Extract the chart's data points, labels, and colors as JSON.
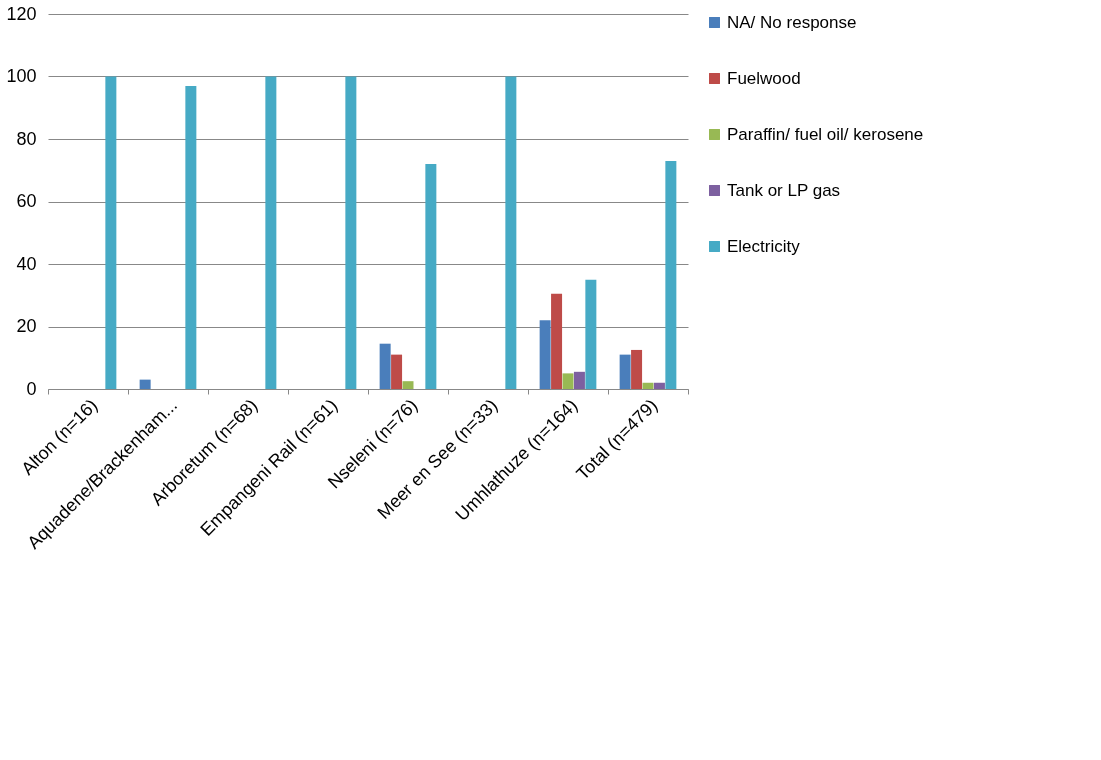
{
  "chart_data": {
    "type": "bar",
    "categories": [
      "Alton (n=16)",
      "Aquadene/Brackenham...",
      "Arboretum (n=68)",
      "Empangeni Rail (n=61)",
      "Nseleni (n=76)",
      "Meer en See  (n=33)",
      "Umhlathuze (n=164)",
      "Total (n=479)"
    ],
    "series": [
      {
        "name": "NA/ No response",
        "color": "#4a7ebb",
        "values": [
          0,
          3,
          0,
          0,
          14.5,
          0,
          22,
          11
        ]
      },
      {
        "name": "Fuelwood",
        "color": "#be4b48",
        "values": [
          0,
          0,
          0,
          0,
          11,
          0,
          30.5,
          12.5
        ]
      },
      {
        "name": "Paraffin/ fuel oil/ kerosene",
        "color": "#98b954",
        "values": [
          0,
          0,
          0,
          0,
          2.5,
          0,
          5,
          2
        ]
      },
      {
        "name": "Tank or LP gas",
        "color": "#7d60a0",
        "values": [
          0,
          0,
          0,
          0,
          0,
          0,
          5.5,
          2
        ]
      },
      {
        "name": "Electricity",
        "color": "#46aac5",
        "values": [
          100,
          97,
          100,
          100,
          72,
          100,
          35,
          73
        ]
      }
    ],
    "ylim": [
      0,
      120
    ],
    "yticks": [
      0,
      20,
      40,
      60,
      80,
      100,
      120
    ],
    "grid": "y",
    "legend": "right"
  }
}
